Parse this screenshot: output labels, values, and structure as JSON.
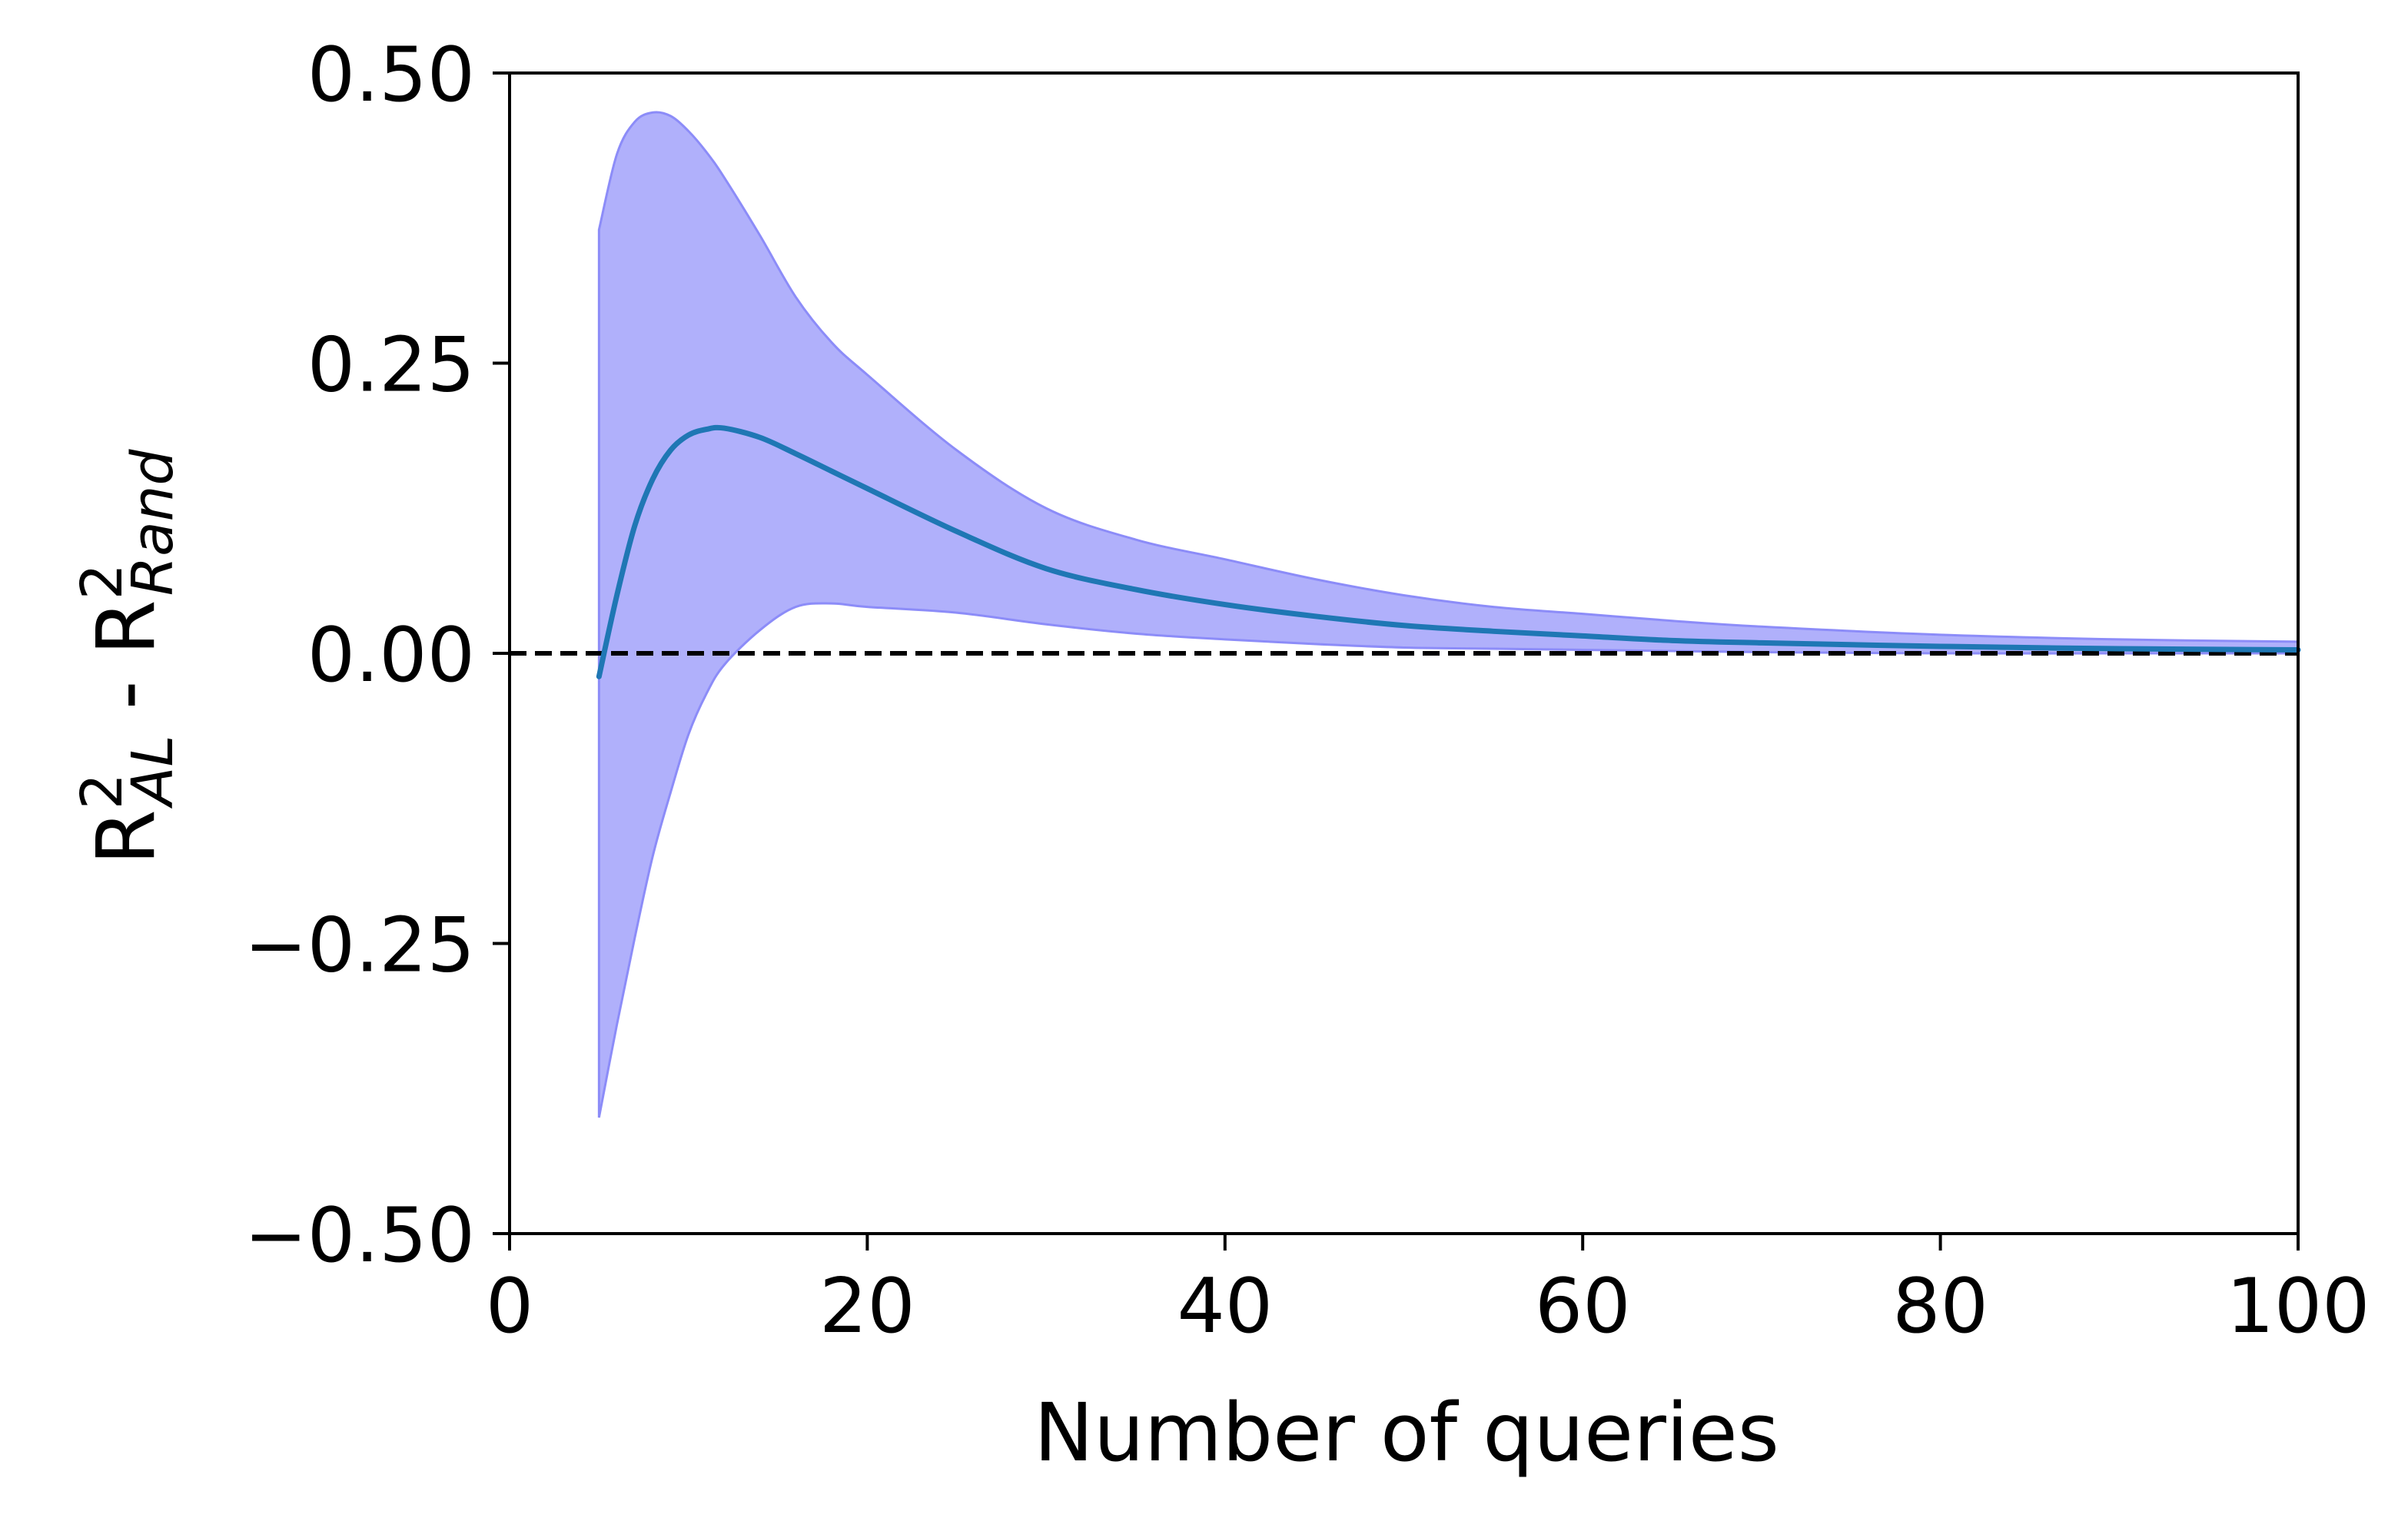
{
  "chart_data": {
    "type": "area",
    "title": "",
    "xlabel": "Number of queries",
    "ylabel": {
      "part1_base": "R",
      "part1_sup": "2",
      "part1_sub": "AL",
      "separator": " - ",
      "part2_base": "R",
      "part2_sup": "2",
      "part2_sub": "Rand"
    },
    "xlim": [
      0,
      100
    ],
    "ylim": [
      -0.5,
      0.5
    ],
    "x_ticks": [
      0,
      20,
      40,
      60,
      80,
      100
    ],
    "x_tick_labels": [
      "0",
      "20",
      "40",
      "60",
      "80",
      "100"
    ],
    "y_ticks": [
      -0.5,
      -0.25,
      0,
      0.25,
      0.5
    ],
    "y_tick_labels": [
      "−0.50",
      "−0.25",
      "0.00",
      "0.25",
      "0.50"
    ],
    "grid": false,
    "reference_line": {
      "y": 0,
      "style": "dashed",
      "color": "#000000"
    },
    "series": [
      {
        "x": [
          5,
          6,
          7,
          8,
          9,
          10,
          11,
          12,
          14,
          16,
          18,
          20,
          25,
          30,
          35,
          40,
          45,
          50,
          55,
          60,
          65,
          70,
          80,
          90,
          100
        ],
        "mean": [
          -0.02,
          0.05,
          0.11,
          0.15,
          0.175,
          0.188,
          0.193,
          0.194,
          0.186,
          0.172,
          0.157,
          0.142,
          0.105,
          0.073,
          0.055,
          0.042,
          0.032,
          0.024,
          0.019,
          0.015,
          0.011,
          0.009,
          0.006,
          0.004,
          0.003
        ],
        "upper": [
          0.365,
          0.43,
          0.458,
          0.466,
          0.463,
          0.45,
          0.432,
          0.41,
          0.36,
          0.307,
          0.268,
          0.24,
          0.175,
          0.125,
          0.098,
          0.081,
          0.064,
          0.05,
          0.04,
          0.034,
          0.028,
          0.023,
          0.016,
          0.012,
          0.01
        ],
        "lower": [
          -0.4,
          -0.32,
          -0.245,
          -0.175,
          -0.12,
          -0.07,
          -0.035,
          -0.01,
          0.02,
          0.04,
          0.043,
          0.04,
          0.035,
          0.025,
          0.017,
          0.012,
          0.008,
          0.005,
          0.004,
          0.003,
          0.002,
          0.001,
          0.0,
          0.0,
          0.0
        ],
        "line_color": "#1f77b4",
        "band_color": "#b0b0fb",
        "band_edge_color": "#8c8cf8"
      }
    ]
  }
}
